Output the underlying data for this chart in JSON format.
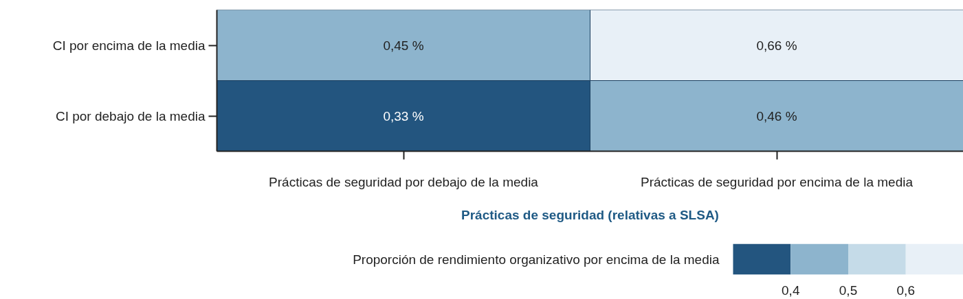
{
  "chart_data": {
    "type": "heatmap",
    "categories": [
      "Prácticas de seguridad por debajo de la media",
      "Prácticas de seguridad por encima de la media"
    ],
    "y_categories": [
      "CI por encima de la media",
      "CI por debajo de la media"
    ],
    "cells": [
      [
        0.45,
        0.66
      ],
      [
        0.33,
        0.46
      ]
    ],
    "cell_labels": [
      [
        "0,45 %",
        "0,66 %"
      ],
      [
        "0,33 %",
        "0,46 %"
      ]
    ],
    "xlabel": "Prácticas de seguridad (relativas a SLSA)",
    "clabel": "Proporción de rendimiento organizativo por encima de la media",
    "colors": [
      "#23557f",
      "#8db4cd",
      "#c5dbe8",
      "#e8f0f7"
    ],
    "clim": [
      0.3,
      0.7
    ],
    "cticks": [
      {
        "value": 0.4,
        "label": "0,4"
      },
      {
        "value": 0.5,
        "label": "0,5"
      },
      {
        "value": 0.6,
        "label": "0,6"
      }
    ]
  }
}
